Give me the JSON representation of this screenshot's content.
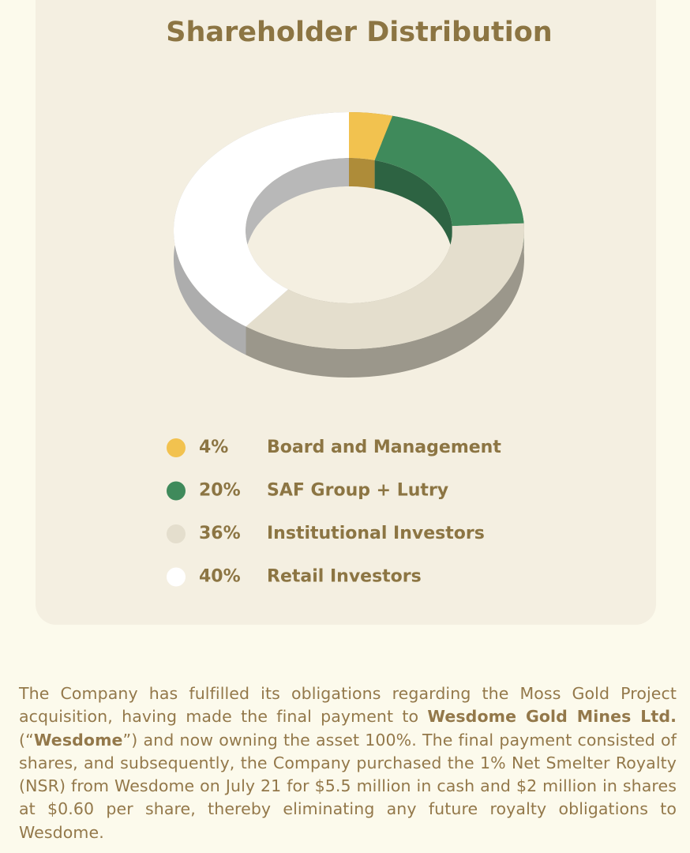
{
  "chart_data": {
    "type": "pie",
    "title": "Shareholder Distribution",
    "categories": [
      "Board and Management",
      "SAF Group + Lutry",
      "Institutional Investors",
      "Retail Investors"
    ],
    "values": [
      4,
      20,
      36,
      40
    ],
    "value_labels": [
      "4%",
      "20%",
      "36%",
      "40%"
    ],
    "colors": [
      "#f2c24f",
      "#3f8a5b",
      "#e4decd",
      "#ffffff"
    ]
  },
  "paragraph": [
    "The Company has fulfilled its obligations regarding the Moss Gold Project acquisition, having made the final payment to ",
    "Wesdome Gold Mines Ltd.",
    " (“",
    "Wesdome",
    "”) and now owning the asset 100%. The final payment consisted of shares, and subsequently, the Company purchased the 1% Net Smelter Royalty (NSR) from Wesdome on July 21 for $5.5 million in cash and $2 million in shares at $0.60 per share, thereby eliminating any future royalty obligations to Wesdome."
  ]
}
